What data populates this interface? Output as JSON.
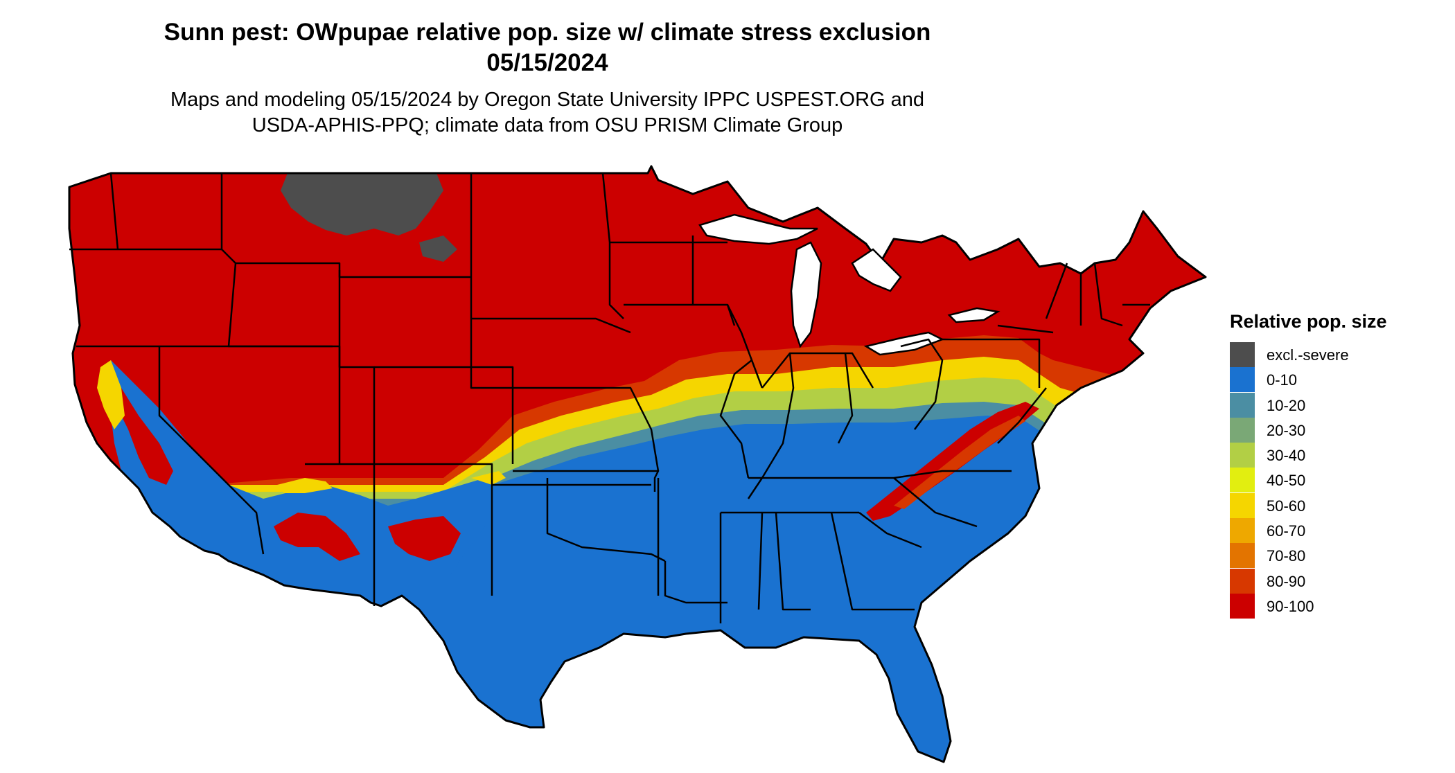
{
  "title": {
    "line1": "Sunn pest: OWpupae relative pop. size w/ climate stress exclusion",
    "line2": "05/15/2024"
  },
  "subtitle": {
    "line1": "Maps and modeling 05/15/2024 by Oregon State University IPPC USPEST.ORG and",
    "line2": "USDA-APHIS-PPQ; climate data from OSU PRISM Climate Group"
  },
  "legend": {
    "title": "Relative pop. size",
    "items": [
      {
        "label": "excl.-severe",
        "color": "#4d4d4d"
      },
      {
        "label": "0-10",
        "color": "#1a72d0"
      },
      {
        "label": "10-20",
        "color": "#4b8ea3"
      },
      {
        "label": "20-30",
        "color": "#7aa876"
      },
      {
        "label": "30-40",
        "color": "#b2cf45"
      },
      {
        "label": "40-50",
        "color": "#e2ee10"
      },
      {
        "label": "50-60",
        "color": "#f5d600"
      },
      {
        "label": "60-70",
        "color": "#eea800"
      },
      {
        "label": "70-80",
        "color": "#e37400"
      },
      {
        "label": "80-90",
        "color": "#d73800"
      },
      {
        "label": "90-100",
        "color": "#cc0000"
      }
    ]
  }
}
